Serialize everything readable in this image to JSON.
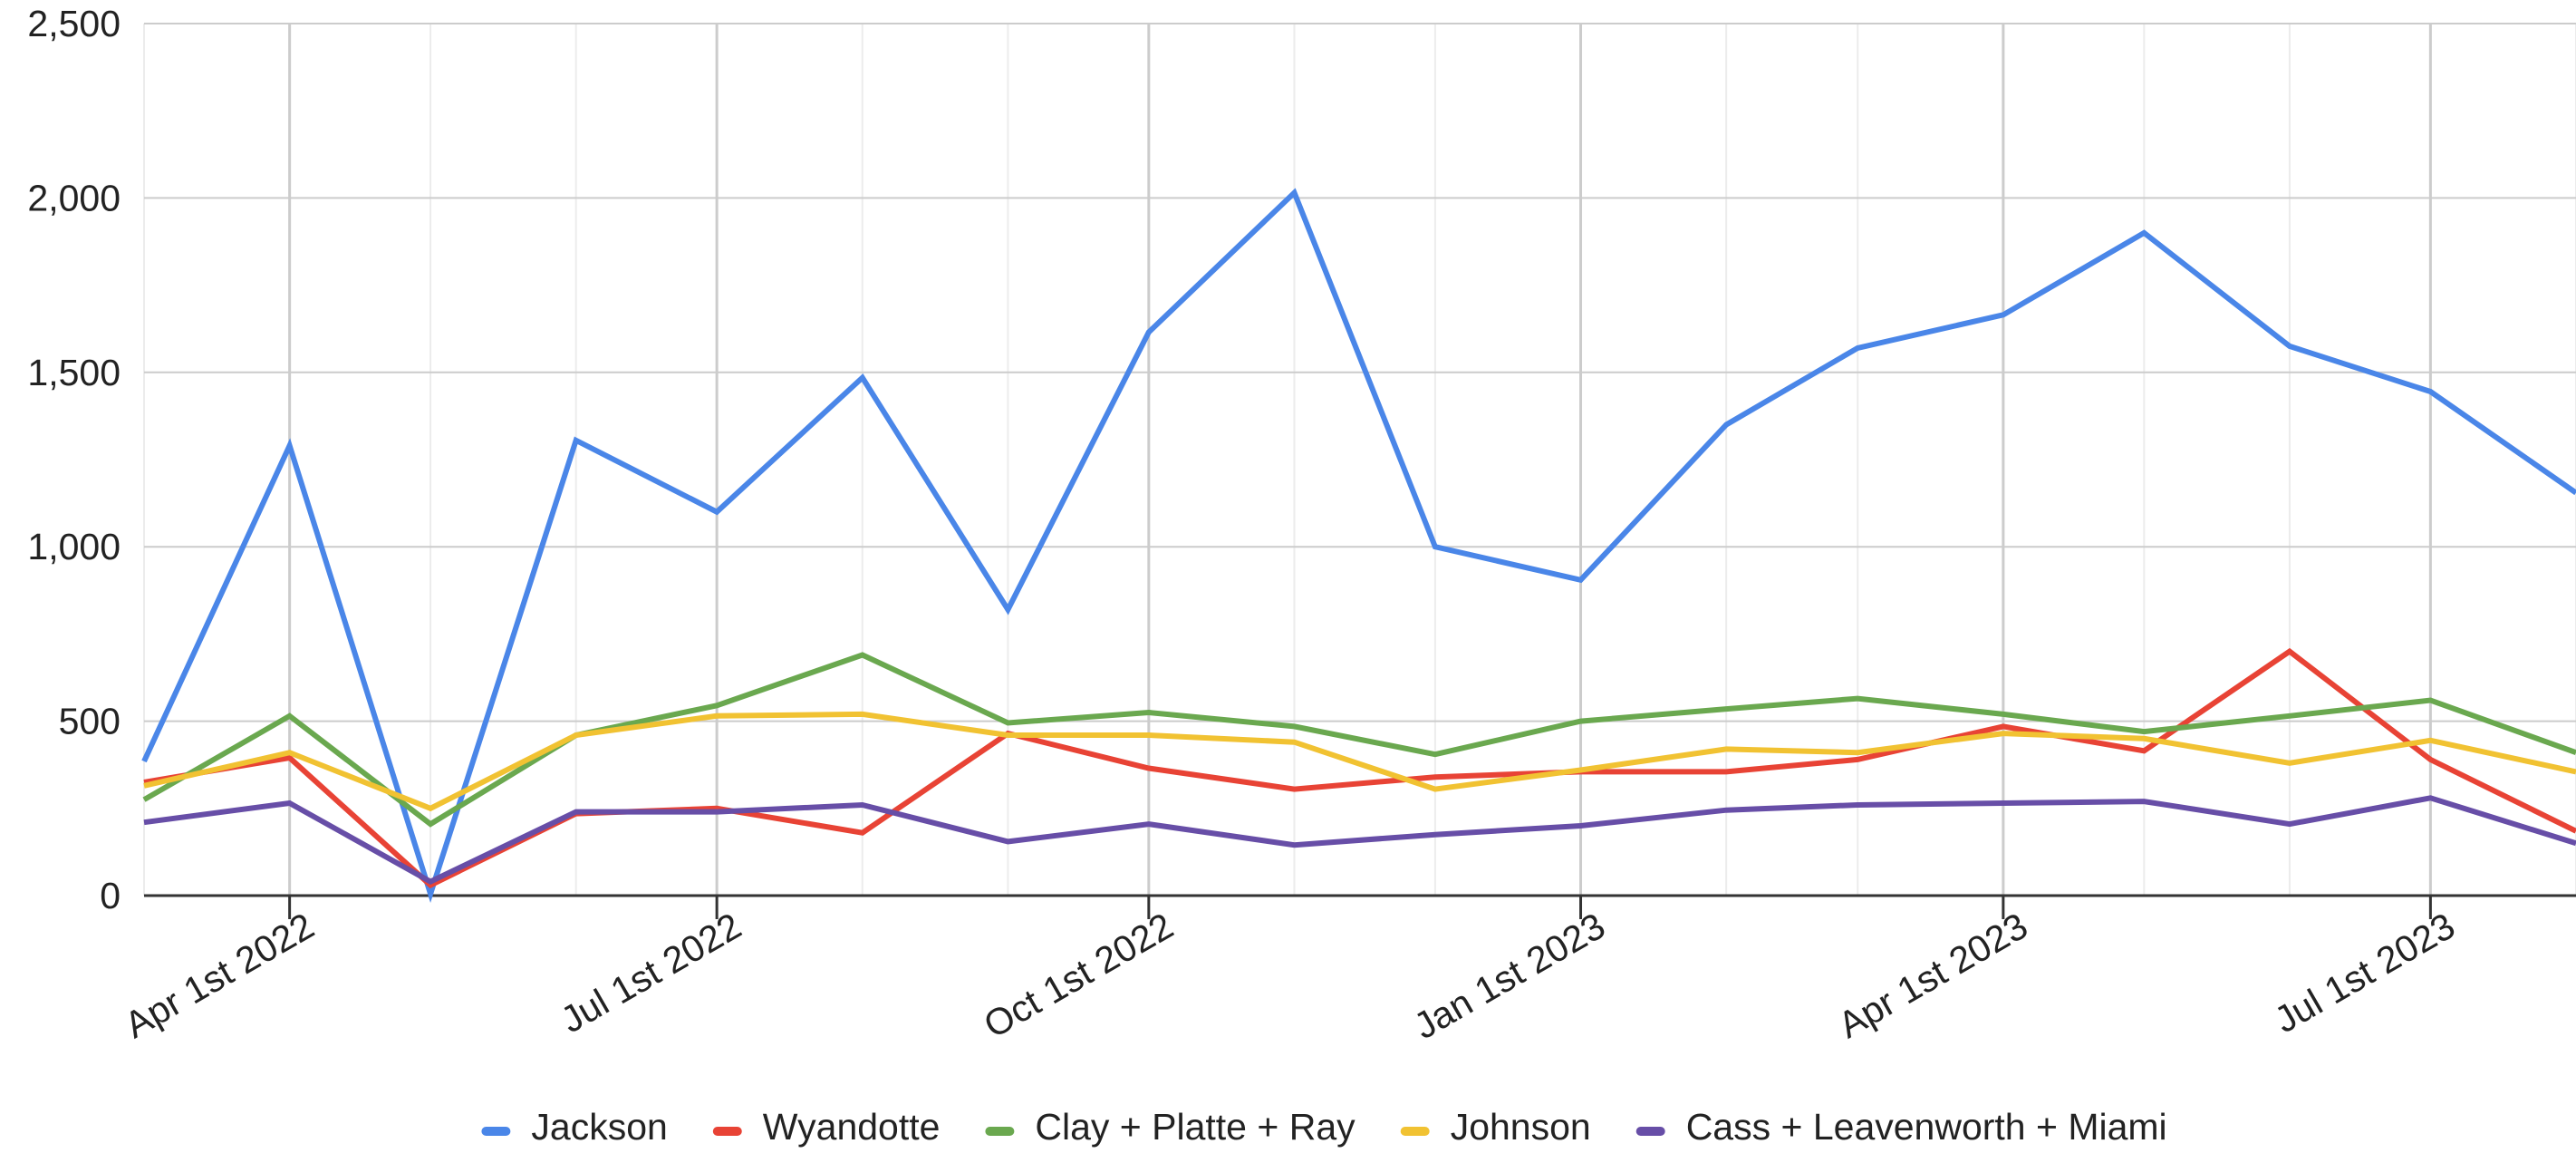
{
  "chart_data": {
    "type": "line",
    "title": "",
    "xlabel": "",
    "ylabel": "",
    "x": [
      "2022-03-01",
      "2022-04-01",
      "2022-05-01",
      "2022-06-01",
      "2022-07-01",
      "2022-08-01",
      "2022-09-01",
      "2022-10-01",
      "2022-11-01",
      "2022-12-01",
      "2023-01-01",
      "2023-02-01",
      "2023-03-01",
      "2023-04-01",
      "2023-05-01",
      "2023-06-01",
      "2023-07-01",
      "2023-08-01"
    ],
    "xlim": [
      "2022-03-01",
      "2023-08-01"
    ],
    "ylim": [
      0,
      2500
    ],
    "y_ticks": [
      0,
      500,
      1000,
      1500,
      2000,
      2500
    ],
    "y_tick_labels": [
      "0",
      "500",
      "1,000",
      "1,500",
      "2,000",
      "2,500"
    ],
    "x_ticks": [
      "2022-04-01",
      "2022-07-01",
      "2022-10-01",
      "2023-01-01",
      "2023-04-01",
      "2023-07-01"
    ],
    "x_tick_labels": [
      "Apr 1st 2022",
      "Jul 1st 2022",
      "Oct 1st 2022",
      "Jan 1st 2023",
      "Apr 1st 2023",
      "Jul 1st 2023"
    ],
    "grid": true,
    "legend_position": "bottom",
    "series": [
      {
        "name": "Jackson",
        "color": "#4a86e8",
        "values": [
          385,
          1290,
          5,
          1305,
          1100,
          1485,
          820,
          1615,
          2015,
          1000,
          905,
          1350,
          1570,
          1665,
          1900,
          1575,
          1445,
          1155
        ]
      },
      {
        "name": "Wyandotte",
        "color": "#e84335",
        "values": [
          325,
          395,
          30,
          235,
          250,
          180,
          465,
          365,
          305,
          340,
          355,
          355,
          390,
          485,
          415,
          700,
          390,
          185
        ]
      },
      {
        "name": "Clay + Platte + Ray",
        "color": "#6aa84f",
        "values": [
          275,
          515,
          205,
          460,
          545,
          690,
          495,
          525,
          485,
          405,
          500,
          535,
          565,
          520,
          470,
          515,
          560,
          410
        ]
      },
      {
        "name": "Johnson",
        "color": "#f1c232",
        "values": [
          315,
          410,
          250,
          460,
          515,
          520,
          460,
          460,
          440,
          305,
          360,
          420,
          410,
          465,
          450,
          380,
          445,
          355
        ]
      },
      {
        "name": "Cass + Leavenworth + Miami",
        "color": "#674ea7",
        "values": [
          210,
          265,
          40,
          240,
          240,
          260,
          155,
          205,
          145,
          175,
          200,
          245,
          260,
          265,
          270,
          205,
          280,
          150
        ]
      }
    ]
  }
}
